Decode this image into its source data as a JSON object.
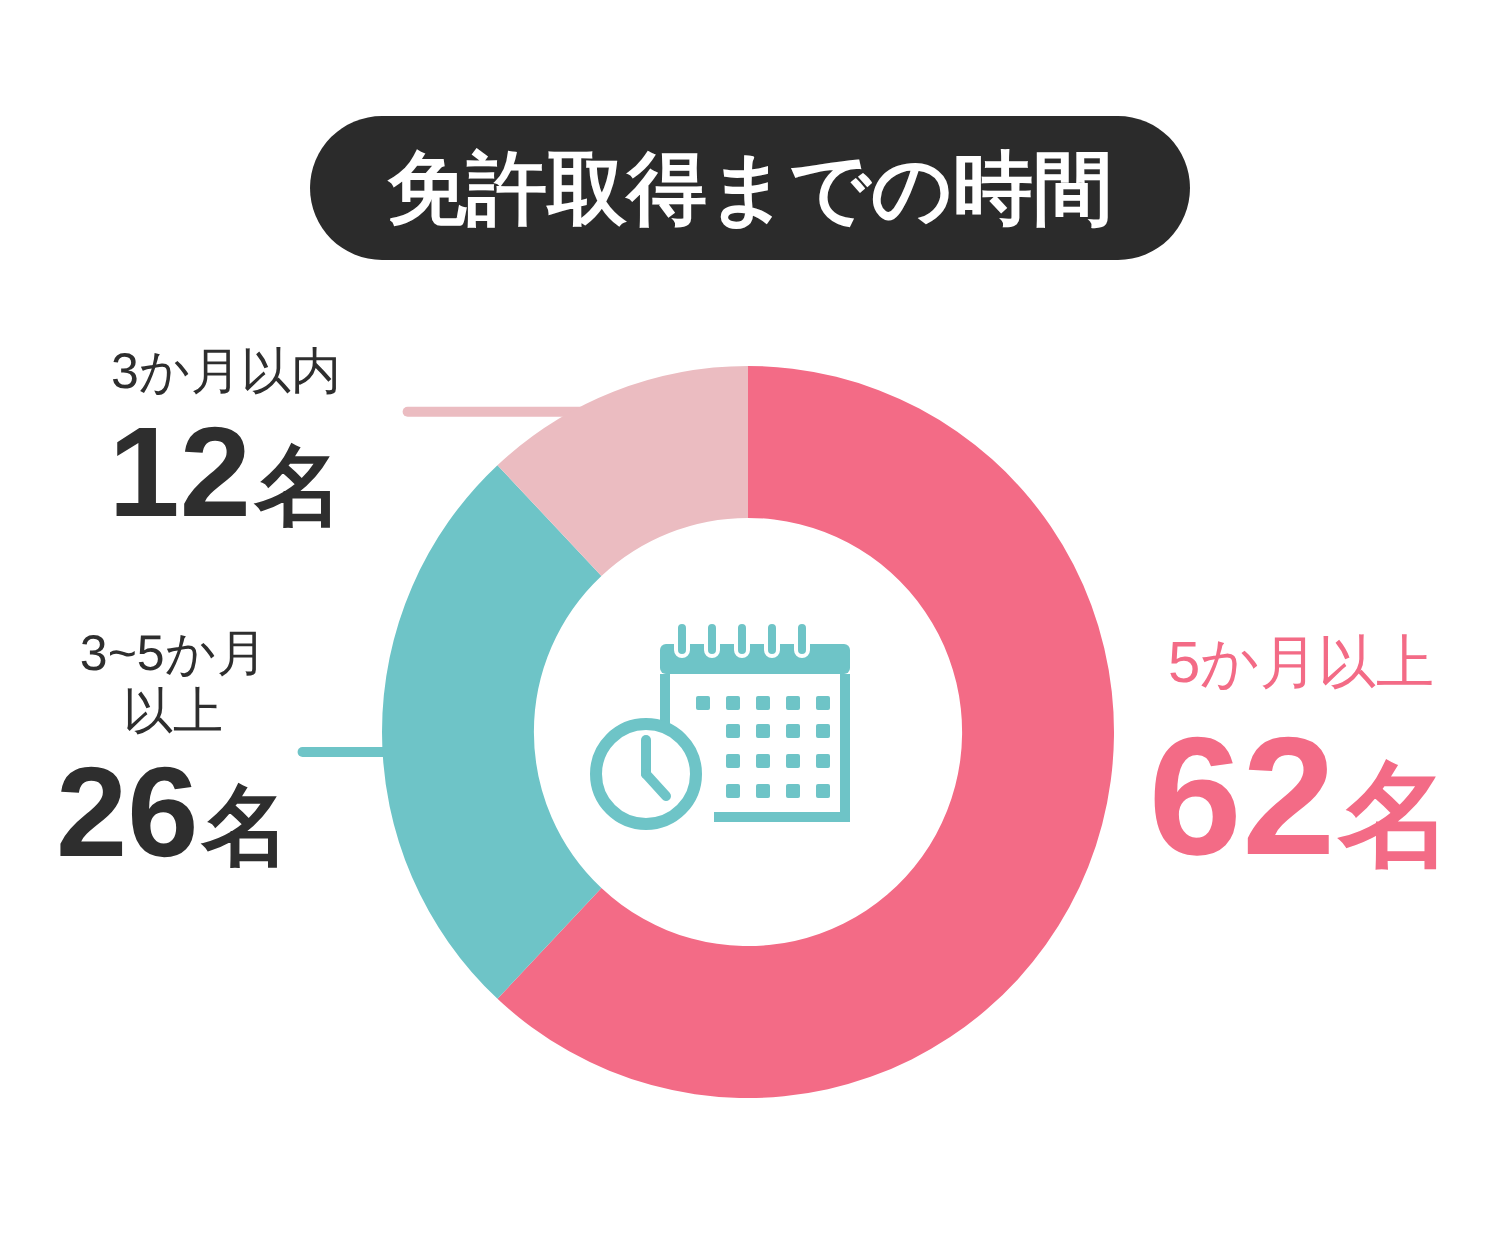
{
  "chart_data": {
    "type": "donut",
    "title": "免許取得までの時間",
    "categories": [
      "5か月以上",
      "3~5か月以上",
      "3か月以内"
    ],
    "values": [
      62,
      26,
      12
    ],
    "colors": [
      "#f36b86",
      "#6ec4c7",
      "#ebbcc1"
    ],
    "value_labels": [
      "62名",
      "26名",
      "12名"
    ],
    "legend": false
  }
}
